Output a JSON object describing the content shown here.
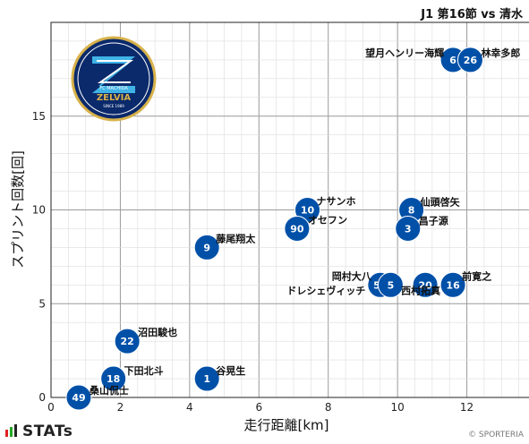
{
  "chart_data": {
    "type": "scatter",
    "title": "J1 第16節 vs 清水",
    "xlabel": "走行距離[km]",
    "ylabel": "スプリント回数[回]",
    "xlim": [
      0,
      14
    ],
    "ylim": [
      0,
      20
    ],
    "xticks": [
      "0",
      "2",
      "4",
      "6",
      "8",
      "10",
      "12",
      "14"
    ],
    "yticks": [
      "0",
      "5",
      "10",
      "15"
    ],
    "grid": true,
    "marker_color": "#0050a8",
    "points": [
      {
        "number": "6",
        "name": "望月ヘンリー海輝",
        "x": 11.6,
        "y": 18
      },
      {
        "number": "26",
        "name": "林幸多郎",
        "x": 12.1,
        "y": 18
      },
      {
        "number": "10",
        "name": "ナサンホ",
        "x": 7.4,
        "y": 10
      },
      {
        "number": "90",
        "name": "オセフン",
        "x": 7.1,
        "y": 9
      },
      {
        "number": "8",
        "name": "仙頭啓矢",
        "x": 10.4,
        "y": 10
      },
      {
        "number": "3",
        "name": "昌子源",
        "x": 10.3,
        "y": 9
      },
      {
        "number": "9",
        "name": "藤尾翔太",
        "x": 4.5,
        "y": 8
      },
      {
        "number": "50",
        "name": "岡村大八",
        "x": 9.5,
        "y": 6
      },
      {
        "number": "5",
        "name": "ドレシェヴィッチ",
        "x": 9.8,
        "y": 6
      },
      {
        "number": "20",
        "name": "西村拓真",
        "x": 10.8,
        "y": 6
      },
      {
        "number": "16",
        "name": "前寛之",
        "x": 11.6,
        "y": 6
      },
      {
        "number": "22",
        "name": "沼田駿也",
        "x": 2.2,
        "y": 3
      },
      {
        "number": "18",
        "name": "下田北斗",
        "x": 1.8,
        "y": 1
      },
      {
        "number": "1",
        "name": "谷晃生",
        "x": 4.5,
        "y": 1
      },
      {
        "number": "49",
        "name": "桑山侃士",
        "x": 0.8,
        "y": 0
      }
    ]
  },
  "logo": {
    "line1": "FC MACHIDA",
    "line2": "ZELVIA",
    "line3": "SINCE 1989"
  },
  "footer": {
    "brand": "STATs",
    "credit": "© SPORTERIA"
  }
}
